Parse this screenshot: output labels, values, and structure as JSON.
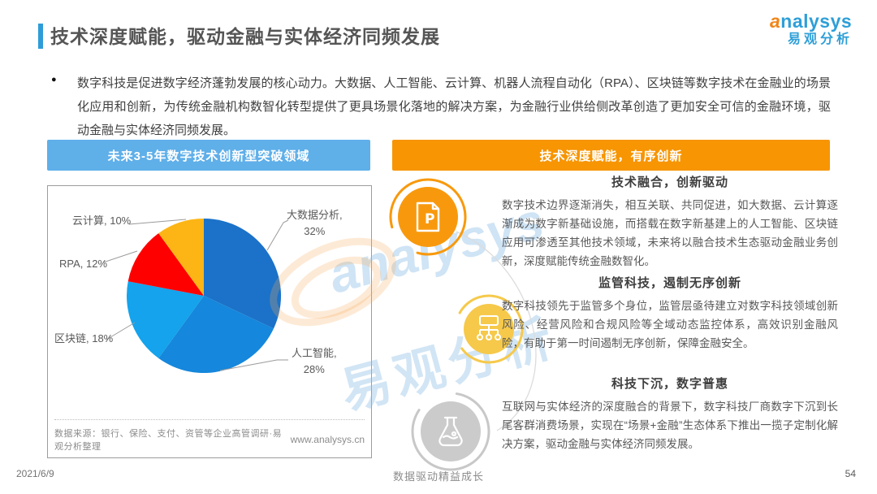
{
  "header": {
    "title": "技术深度赋能，驱动金融与实体经济同频发展",
    "accent_color": "#2E9CD9"
  },
  "logo": {
    "brand": "analysys",
    "brand_cn": "易观分析",
    "brand_color": "#2E9FD8",
    "swirl_color": "#F08519"
  },
  "intro": {
    "bullet": "●",
    "text": "数字科技是促进数字经济蓬勃发展的核心动力。大数据、人工智能、云计算、机器人流程自动化（RPA）、区块链等数字技术在金融业的场景化应用和创新，为传统金融机构数智化转型提供了更具场景化落地的解决方案，为金融行业供给侧改革创造了更加安全可信的金融环境，驱动金融与实体经济同频发展。"
  },
  "panels": {
    "left_header": "未来3-5年数字技术创新型突破领域",
    "left_header_color": "#5FAFE9",
    "right_header": "技术深度赋能，有序创新",
    "right_header_color": "#F79502"
  },
  "chart_data": {
    "type": "pie",
    "title": "未来3-5年数字技术创新型突破领域",
    "categories": [
      "大数据分析",
      "人工智能",
      "区块链",
      "RPA",
      "云计算"
    ],
    "values": [
      32,
      28,
      18,
      12,
      10
    ],
    "unit": "%",
    "colors": [
      "#1B72C8",
      "#1587DC",
      "#14A3EC",
      "#FE0000",
      "#FCB515"
    ],
    "start_angle": "top",
    "direction": "clockwise",
    "legend": "none",
    "source": "数据来源：银行、保险、支付、资管等企业高管调研·易观分析整理",
    "website": "www.analysys.cn"
  },
  "sections": [
    {
      "icon": "document-p-icon",
      "icon_color": "#F8990D",
      "title": "技术融合，创新驱动",
      "body": "数字技术边界逐渐消失，相互关联、共同促进，如大数据、云计算逐渐成为数字新基础设施，而搭载在数字新基建上的人工智能、区块链应用可渗透至其他技术领域，未来将以融合技术生态驱动金融业务创新，深度赋能传统金融数智化。"
    },
    {
      "icon": "sitemap-icon",
      "icon_color": "#F6C94B",
      "title": "监管科技，遏制无序创新",
      "body": "数字科技领先于监管多个身位，监管层亟待建立对数字科技领域创新风险、经营风险和合规风险等全域动态监控体系，高效识别金融风险，有助于第一时间遏制无序创新，保障金融安全。"
    },
    {
      "icon": "flask-icon",
      "icon_color": "#CBCBCB",
      "title": "科技下沉，数字普惠",
      "body": "互联网与实体经济的深度融合的背景下，数字科技厂商数字下沉到长尾客群消费场景，实现在“场景+金融”生态体系下推出一揽子定制化解决方案，驱动金融与实体经济同频发展。"
    }
  ],
  "watermark": {
    "en": "analysys",
    "cn": "易观分析"
  },
  "footer": {
    "date": "2021/6/9",
    "slogan": "数据驱动精益成长",
    "page": "54"
  }
}
